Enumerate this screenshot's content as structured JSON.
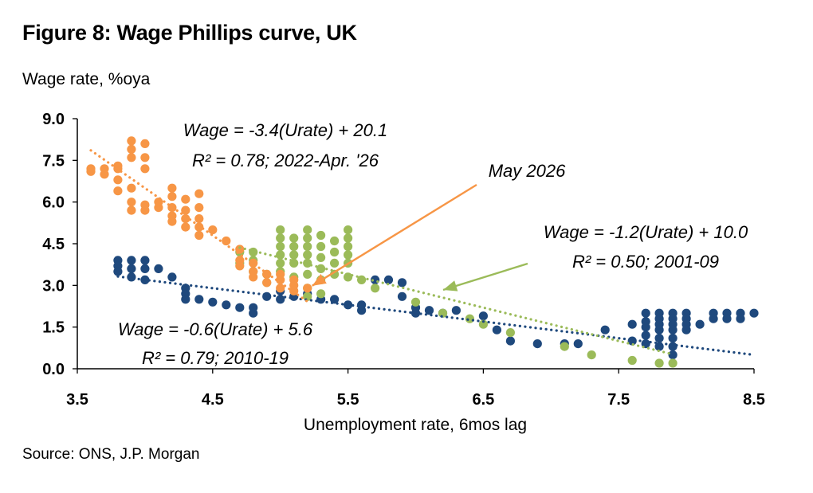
{
  "title": "Figure 8: Wage Phillips curve, UK",
  "ylabel": "Wage rate, %oya",
  "source": "Source: ONS, J.P. Morgan",
  "colors": {
    "s2022": "#F79646",
    "s2001": "#9BBB59",
    "s2010": "#1F497D"
  },
  "chart_data": {
    "type": "scatter",
    "xlabel": "Unemployment rate, 6mos lag",
    "ylabel": "Wage rate, %oya",
    "xlim": [
      3.5,
      8.5
    ],
    "ylim": [
      0.0,
      9.0
    ],
    "xticks": [
      "3.5",
      "4.5",
      "5.5",
      "6.5",
      "7.5",
      "8.5"
    ],
    "yticks": [
      "0.0",
      "1.5",
      "3.0",
      "4.5",
      "6.0",
      "7.5",
      "9.0"
    ],
    "grid": false,
    "annotations": [
      {
        "text": "May 2026",
        "x": 5.2,
        "y": 2.9
      }
    ],
    "series": [
      {
        "key": "s2010",
        "color": "#1F497D",
        "trendline": {
          "slope": -0.6,
          "intercept": 5.6,
          "x_range": [
            3.8,
            8.5
          ]
        },
        "eq_line1": "Wage = -0.6(Urate) + 5.6",
        "eq_line2": "R² = 0.79; 2010-19",
        "points": [
          [
            3.8,
            3.9
          ],
          [
            3.8,
            3.7
          ],
          [
            3.8,
            3.5
          ],
          [
            3.9,
            3.9
          ],
          [
            3.9,
            3.6
          ],
          [
            3.9,
            3.3
          ],
          [
            4.0,
            3.9
          ],
          [
            4.0,
            3.6
          ],
          [
            4.0,
            3.2
          ],
          [
            4.1,
            3.6
          ],
          [
            4.2,
            3.3
          ],
          [
            4.3,
            2.9
          ],
          [
            4.3,
            2.7
          ],
          [
            4.3,
            2.5
          ],
          [
            4.4,
            2.5
          ],
          [
            4.5,
            2.4
          ],
          [
            4.6,
            2.3
          ],
          [
            4.7,
            2.2
          ],
          [
            4.8,
            2.2
          ],
          [
            4.8,
            2.0
          ],
          [
            4.9,
            2.6
          ],
          [
            5.0,
            2.8
          ],
          [
            5.0,
            2.5
          ],
          [
            5.1,
            2.6
          ],
          [
            5.2,
            2.7
          ],
          [
            5.3,
            2.5
          ],
          [
            5.4,
            2.5
          ],
          [
            5.5,
            2.3
          ],
          [
            5.6,
            2.1
          ],
          [
            5.6,
            2.3
          ],
          [
            5.7,
            3.2
          ],
          [
            5.8,
            3.2
          ],
          [
            5.9,
            3.1
          ],
          [
            5.9,
            2.6
          ],
          [
            6.0,
            2.2
          ],
          [
            6.0,
            2.0
          ],
          [
            6.1,
            2.1
          ],
          [
            6.2,
            2.0
          ],
          [
            6.3,
            2.1
          ],
          [
            6.5,
            1.9
          ],
          [
            6.6,
            1.4
          ],
          [
            6.7,
            1.0
          ],
          [
            6.9,
            0.9
          ],
          [
            7.1,
            0.9
          ],
          [
            7.2,
            0.9
          ],
          [
            7.4,
            1.4
          ],
          [
            7.6,
            1.6
          ],
          [
            7.6,
            1.0
          ],
          [
            7.7,
            2.0
          ],
          [
            7.7,
            1.7
          ],
          [
            7.7,
            1.5
          ],
          [
            7.7,
            1.2
          ],
          [
            7.7,
            0.9
          ],
          [
            7.8,
            2.0
          ],
          [
            7.8,
            1.8
          ],
          [
            7.8,
            1.6
          ],
          [
            7.8,
            1.4
          ],
          [
            7.8,
            1.1
          ],
          [
            7.8,
            0.8
          ],
          [
            7.9,
            2.0
          ],
          [
            7.9,
            1.8
          ],
          [
            7.9,
            1.6
          ],
          [
            7.9,
            1.4
          ],
          [
            7.9,
            1.1
          ],
          [
            7.9,
            0.8
          ],
          [
            7.9,
            0.5
          ],
          [
            8.0,
            2.0
          ],
          [
            8.0,
            1.8
          ],
          [
            8.0,
            1.6
          ],
          [
            8.0,
            1.4
          ],
          [
            8.1,
            1.6
          ],
          [
            8.2,
            2.0
          ],
          [
            8.2,
            1.8
          ],
          [
            8.3,
            2.0
          ],
          [
            8.3,
            1.8
          ],
          [
            8.4,
            2.0
          ],
          [
            8.4,
            1.8
          ],
          [
            8.5,
            2.0
          ]
        ]
      },
      {
        "key": "s2001",
        "color": "#9BBB59",
        "trendline": {
          "slope": -1.2,
          "intercept": 10.0,
          "x_range": [
            4.7,
            7.9
          ]
        },
        "eq_line1": "Wage = -1.2(Urate) + 10.0",
        "eq_line2": "R² = 0.50; 2001-09",
        "points": [
          [
            4.7,
            4.2
          ],
          [
            4.7,
            3.8
          ],
          [
            4.8,
            4.2
          ],
          [
            4.8,
            3.9
          ],
          [
            4.8,
            3.5
          ],
          [
            4.9,
            3.4
          ],
          [
            4.9,
            3.1
          ],
          [
            5.0,
            5.0
          ],
          [
            5.0,
            4.7
          ],
          [
            5.0,
            4.4
          ],
          [
            5.0,
            4.1
          ],
          [
            5.0,
            3.8
          ],
          [
            5.0,
            3.5
          ],
          [
            5.1,
            4.7
          ],
          [
            5.1,
            4.4
          ],
          [
            5.1,
            4.1
          ],
          [
            5.1,
            3.8
          ],
          [
            5.1,
            3.3
          ],
          [
            5.2,
            5.0
          ],
          [
            5.2,
            4.7
          ],
          [
            5.2,
            4.4
          ],
          [
            5.2,
            4.1
          ],
          [
            5.2,
            3.8
          ],
          [
            5.2,
            3.4
          ],
          [
            5.2,
            2.9
          ],
          [
            5.2,
            2.6
          ],
          [
            5.3,
            4.8
          ],
          [
            5.3,
            4.4
          ],
          [
            5.3,
            4.0
          ],
          [
            5.3,
            3.6
          ],
          [
            5.3,
            3.2
          ],
          [
            5.3,
            2.7
          ],
          [
            5.4,
            4.6
          ],
          [
            5.4,
            4.2
          ],
          [
            5.4,
            3.8
          ],
          [
            5.4,
            3.4
          ],
          [
            5.5,
            5.0
          ],
          [
            5.5,
            4.7
          ],
          [
            5.5,
            4.4
          ],
          [
            5.5,
            4.1
          ],
          [
            5.5,
            3.8
          ],
          [
            5.5,
            3.3
          ],
          [
            5.6,
            3.2
          ],
          [
            5.7,
            2.9
          ],
          [
            6.0,
            2.4
          ],
          [
            6.2,
            2.0
          ],
          [
            6.4,
            1.8
          ],
          [
            6.5,
            1.6
          ],
          [
            6.7,
            1.3
          ],
          [
            7.1,
            0.8
          ],
          [
            7.3,
            0.5
          ],
          [
            7.6,
            0.3
          ],
          [
            7.8,
            0.2
          ],
          [
            7.9,
            0.2
          ]
        ]
      },
      {
        "key": "s2022",
        "color": "#F79646",
        "trendline": {
          "slope": -3.4,
          "intercept": 20.1,
          "x_range": [
            3.6,
            5.2
          ]
        },
        "eq_line1": "Wage = -3.4(Urate) + 20.1",
        "eq_line2": "R² = 0.78; 2022-Apr. '26",
        "points": [
          [
            3.6,
            7.2
          ],
          [
            3.6,
            7.1
          ],
          [
            3.7,
            7.2
          ],
          [
            3.7,
            7.0
          ],
          [
            3.8,
            7.3
          ],
          [
            3.8,
            7.2
          ],
          [
            3.8,
            6.8
          ],
          [
            3.8,
            6.4
          ],
          [
            3.9,
            8.2
          ],
          [
            3.9,
            7.9
          ],
          [
            3.9,
            7.6
          ],
          [
            3.9,
            6.5
          ],
          [
            4.0,
            8.1
          ],
          [
            4.0,
            7.6
          ],
          [
            4.0,
            7.2
          ],
          [
            4.0,
            5.9
          ],
          [
            4.0,
            5.7
          ],
          [
            3.9,
            6.0
          ],
          [
            3.9,
            5.7
          ],
          [
            4.1,
            6.0
          ],
          [
            4.1,
            5.8
          ],
          [
            4.2,
            6.5
          ],
          [
            4.2,
            6.2
          ],
          [
            4.2,
            5.8
          ],
          [
            4.2,
            5.5
          ],
          [
            4.2,
            5.3
          ],
          [
            4.3,
            6.1
          ],
          [
            4.3,
            5.7
          ],
          [
            4.3,
            5.4
          ],
          [
            4.3,
            5.1
          ],
          [
            4.4,
            6.3
          ],
          [
            4.4,
            5.8
          ],
          [
            4.4,
            5.4
          ],
          [
            4.4,
            5.1
          ],
          [
            4.4,
            4.8
          ],
          [
            4.5,
            5.0
          ],
          [
            4.6,
            4.6
          ],
          [
            4.7,
            4.3
          ],
          [
            4.7,
            3.9
          ],
          [
            4.7,
            3.7
          ],
          [
            4.8,
            3.8
          ],
          [
            4.8,
            3.5
          ],
          [
            4.8,
            3.3
          ],
          [
            4.9,
            3.4
          ],
          [
            4.9,
            3.1
          ],
          [
            5.0,
            3.4
          ],
          [
            5.0,
            3.2
          ],
          [
            5.0,
            2.9
          ],
          [
            5.1,
            3.2
          ],
          [
            5.1,
            3.0
          ],
          [
            5.1,
            2.8
          ],
          [
            5.2,
            2.9
          ]
        ]
      }
    ]
  }
}
